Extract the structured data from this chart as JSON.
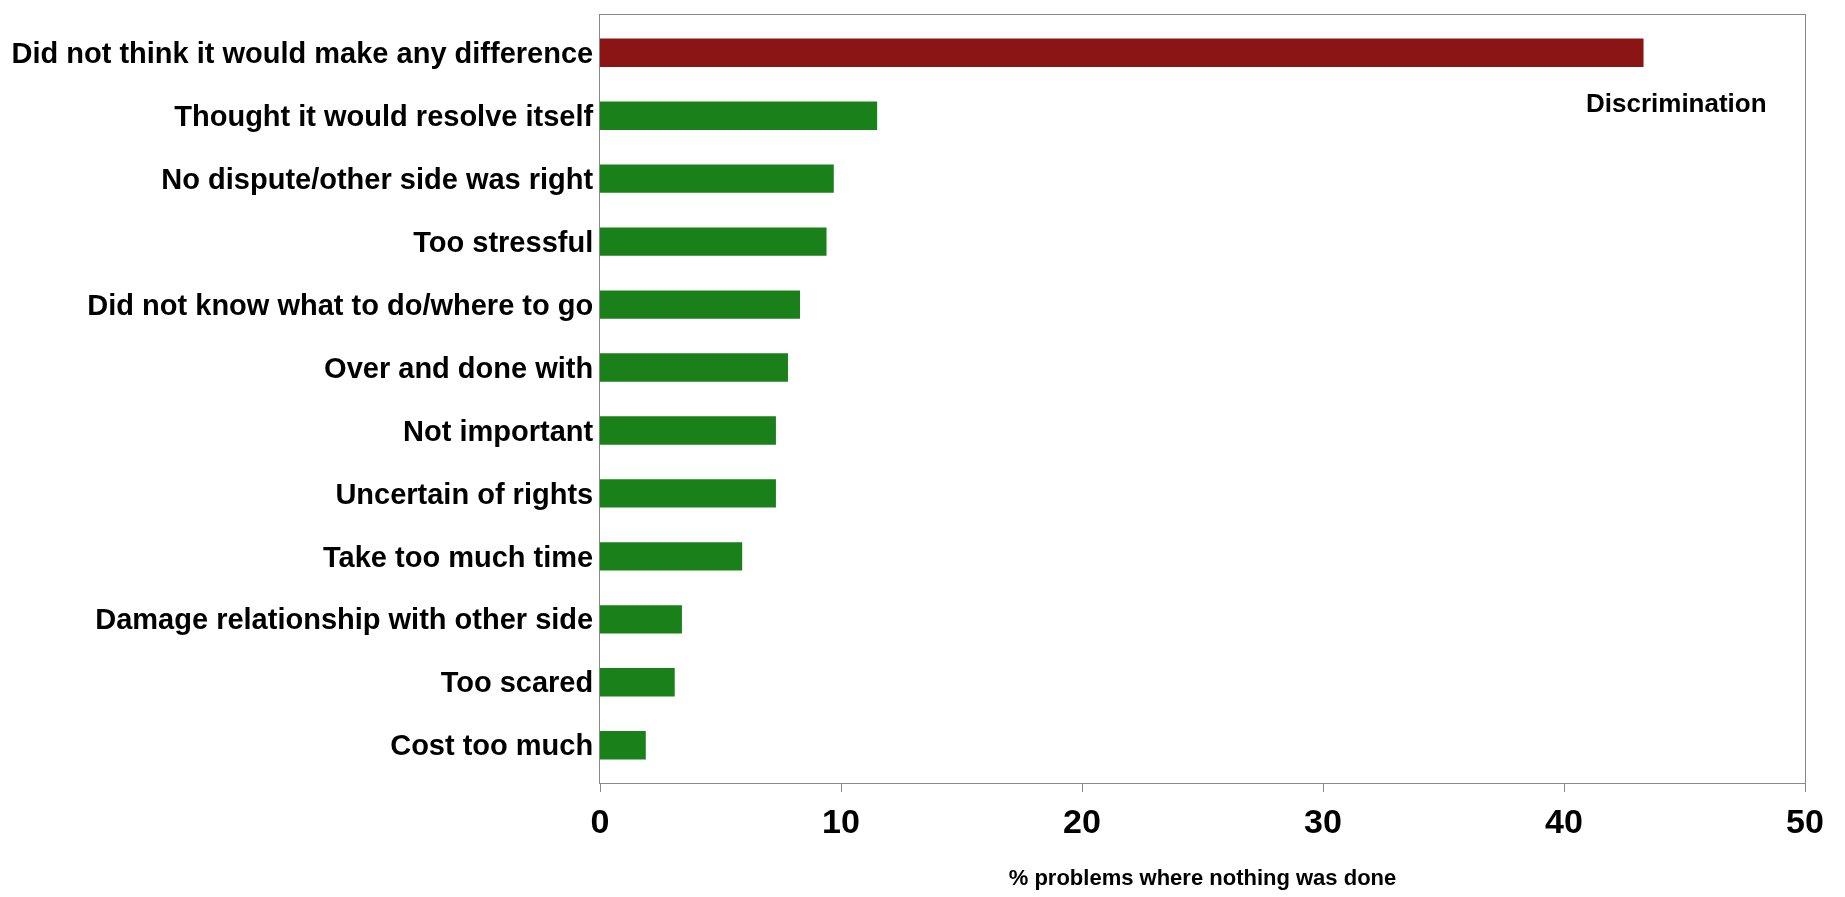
{
  "chart_data": {
    "type": "bar",
    "orientation": "horizontal",
    "categories": [
      "Did not think it would make any difference",
      "Thought it would resolve itself",
      "No dispute/other side was right",
      "Too stressful",
      "Did not know what to do/where to go",
      "Over and done with",
      "Not important",
      "Uncertain of rights",
      "Take too much time",
      "Damage relationship with other side",
      "Too scared",
      "Cost too much"
    ],
    "values": [
      43.3,
      11.5,
      9.7,
      9.4,
      8.3,
      7.8,
      7.3,
      7.3,
      5.9,
      3.4,
      3.1,
      1.9
    ],
    "colors": [
      "#8b1414",
      "#1a801a",
      "#1a801a",
      "#1a801a",
      "#1a801a",
      "#1a801a",
      "#1a801a",
      "#1a801a",
      "#1a801a",
      "#1a801a",
      "#1a801a",
      "#1a801a"
    ],
    "xlim": [
      0,
      50
    ],
    "xticks": [
      0,
      10,
      20,
      30,
      40,
      50
    ],
    "xlabel": "% problems where nothing was done",
    "annotations": [
      "Discrimination"
    ]
  }
}
